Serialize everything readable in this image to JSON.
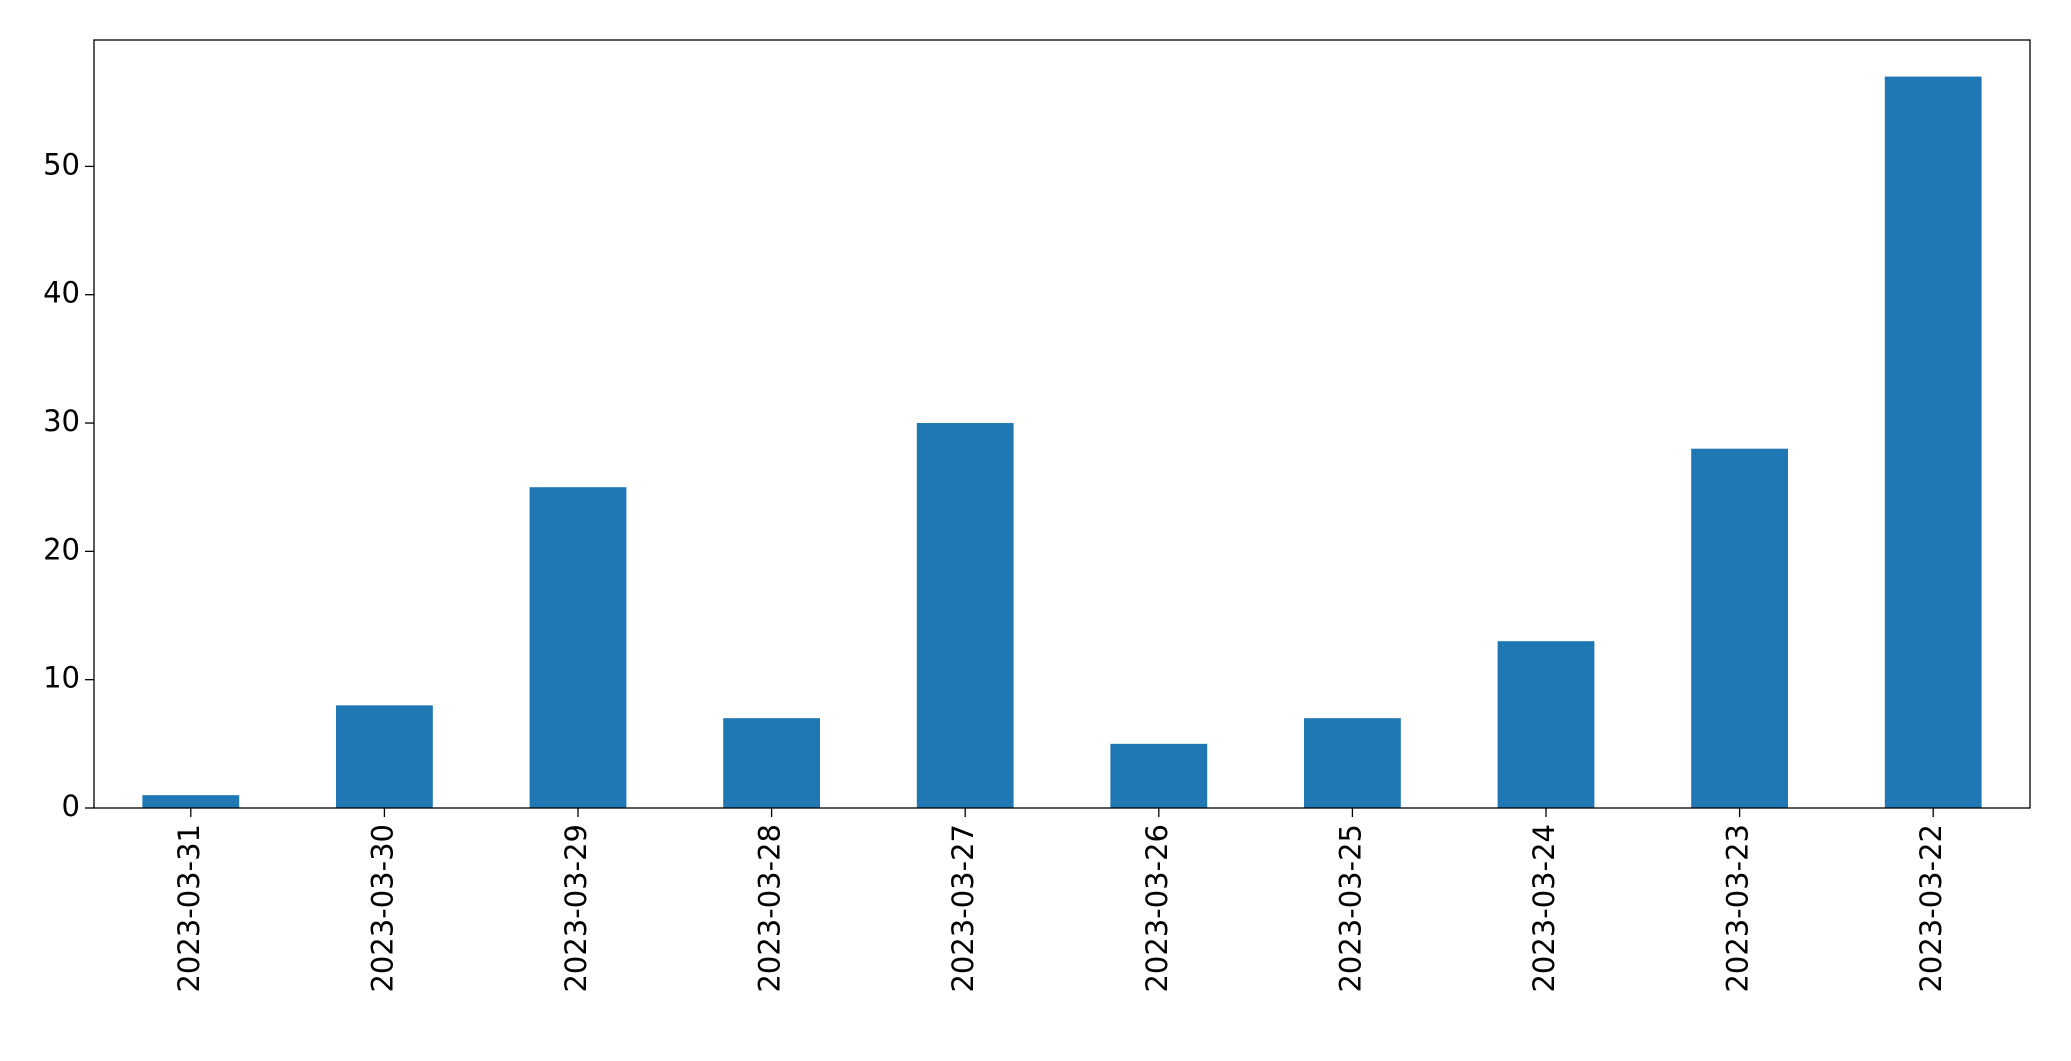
{
  "chart_data": {
    "type": "bar",
    "categories": [
      "2023-03-31",
      "2023-03-30",
      "2023-03-29",
      "2023-03-28",
      "2023-03-27",
      "2023-03-26",
      "2023-03-25",
      "2023-03-24",
      "2023-03-23",
      "2023-03-22"
    ],
    "values": [
      1,
      8,
      25,
      7,
      30,
      5,
      7,
      13,
      28,
      57
    ],
    "color": "#1f77b4",
    "ylim": [
      0,
      59.85
    ],
    "yticks": [
      0,
      10,
      20,
      30,
      40,
      50
    ],
    "grid": false
  }
}
